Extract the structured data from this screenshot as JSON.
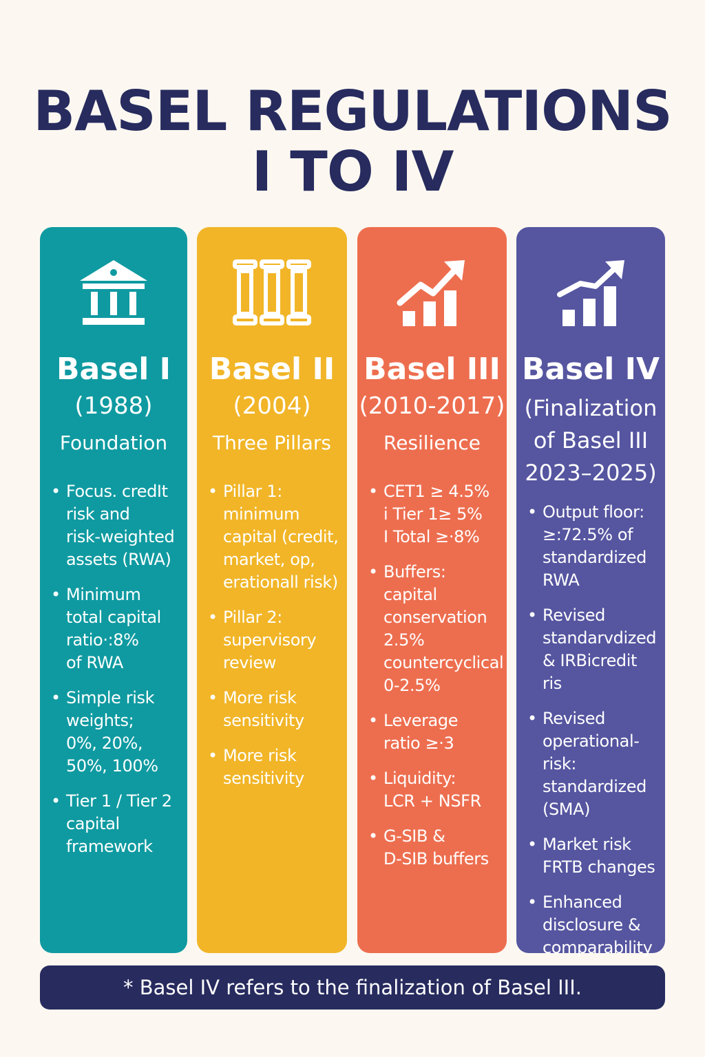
{
  "title": {
    "line1": "BASEL REGULATIONS",
    "line2": "I TO IV"
  },
  "colors": {
    "title": "#272b5e",
    "basel_i": "#0f9aa1",
    "basel_ii": "#f1b527",
    "basel_iii": "#ed6e4f",
    "basel_iv": "#5555a0",
    "footer": "#272b5e",
    "background": "#fcf8f1"
  },
  "columns": [
    {
      "icon": "bank-building-icon",
      "name": "Basel I",
      "years": "(1988)",
      "theme": "Foundation",
      "bullets": [
        "Focus. credIt\nrisk and\nrisk-weighted\nassets (RWA)",
        "Minimum\ntotal capital\nratio·:8%\nof RWA",
        "Simple risk\nweights;\n0%, 20%,\n50%, 100%",
        "Tier 1 / Tier 2\ncapital\nframework"
      ]
    },
    {
      "icon": "three-pillars-icon",
      "name": "Basel II",
      "years": "(2004)",
      "theme": "Three Pillars",
      "bullets": [
        "Pillar 1:\nminimum\ncapital (credit,\nmarket, op,\nerationall risk)",
        "Pillar 2:\nsupervisory\nreview",
        "More risk\nsensitivity",
        "More risk\nsensitivity"
      ]
    },
    {
      "icon": "growth-chart-icon",
      "name": "Basel III",
      "years": "(2010-2017)",
      "theme": "Resilience",
      "bullets": [
        "CET1 ≥ 4.5%\ni Tier 1≥ 5%\nI Total ≥·8%",
        "Buffers:\ncapital\nconservation\n2.5%\ncountercyclical\n0-2.5%",
        "Leverage\nratio ≥·3",
        "Liquidity:\nLCR + NSFR",
        "G-SIB &\nD-SIB buffers"
      ]
    },
    {
      "icon": "rising-bars-icon",
      "name": "Basel IV",
      "years": "(Finalization\nof Basel III\n2023–2025)",
      "theme": "",
      "bullets": [
        "Output floor:\n≥:72.5% of\nstandardized\nRWA",
        "Revised\nstandarvdized\n& IRBicredit ris",
        "Revised\noperational-\nrisk:\nstandardized\n(SMA)",
        "Market risk\nFRTB changes",
        "Enhanced\ndisclosure &\ncomparability"
      ]
    }
  ],
  "footer": {
    "note": "* Basel IV refers to the finalization of Basel III."
  }
}
